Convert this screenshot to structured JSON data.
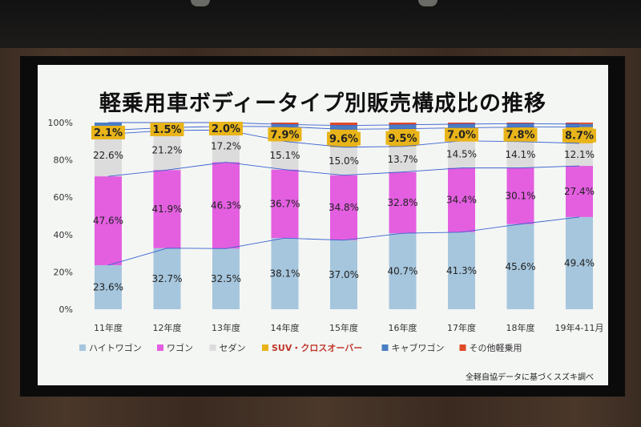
{
  "chart_data": {
    "type": "bar",
    "stacked": true,
    "title": "軽乗用車ボディータイプ別販売構成比の推移",
    "categories": [
      "11年度",
      "12年度",
      "13年度",
      "14年度",
      "15年度",
      "16年度",
      "17年度",
      "18年度",
      "19年4-11月"
    ],
    "yticks": [
      "0%",
      "20%",
      "40%",
      "60%",
      "80%",
      "100%"
    ],
    "ylim": [
      0,
      100
    ],
    "series": [
      {
        "name": "ハイトワゴン",
        "color": "#a6c6dd",
        "values": [
          23.6,
          32.7,
          32.5,
          38.1,
          37.0,
          40.7,
          41.3,
          45.6,
          49.4
        ],
        "labels": [
          "23.6%",
          "32.7%",
          "32.5%",
          "38.1%",
          "37.0%",
          "40.7%",
          "41.3%",
          "45.6%",
          "49.4%"
        ]
      },
      {
        "name": "ワゴン",
        "color": "#e35fe0",
        "values": [
          47.6,
          41.9,
          46.3,
          36.7,
          34.8,
          32.8,
          34.4,
          30.1,
          27.4
        ],
        "labels": [
          "47.6%",
          "41.9%",
          "46.3%",
          "36.7%",
          "34.8%",
          "32.8%",
          "34.4%",
          "30.1%",
          "27.4%"
        ]
      },
      {
        "name": "セダン",
        "color": "#dcdcdc",
        "values": [
          22.6,
          21.2,
          17.2,
          15.1,
          15.0,
          13.7,
          14.5,
          14.1,
          12.1
        ],
        "labels": [
          "22.6%",
          "21.2%",
          "17.2%",
          "15.1%",
          "15.0%",
          "13.7%",
          "14.5%",
          "14.1%",
          "12.1%"
        ]
      },
      {
        "name": "SUV・クロスオーバー",
        "color": "#e8b419",
        "values": [
          2.1,
          1.5,
          2.0,
          7.9,
          9.6,
          9.5,
          7.0,
          7.8,
          8.7
        ],
        "labels": [
          "2.1%",
          "1.5%",
          "2.0%",
          "7.9%",
          "9.6%",
          "9.5%",
          "7.0%",
          "7.8%",
          "8.7%"
        ]
      },
      {
        "name": "キャブワゴン",
        "color": "#4a7ec4",
        "values": [
          4.1,
          2.7,
          2.0,
          1.2,
          2.0,
          2.1,
          2.0,
          1.8,
          1.6
        ]
      },
      {
        "name": "その他軽乗用",
        "color": "#e04a28",
        "values": [
          0,
          0,
          0,
          1.0,
          1.6,
          1.2,
          0.8,
          0.6,
          0.8
        ]
      }
    ],
    "legend_position": "bottom",
    "grid": false
  },
  "footnote": "全軽自協データに基づくスズキ調べ"
}
